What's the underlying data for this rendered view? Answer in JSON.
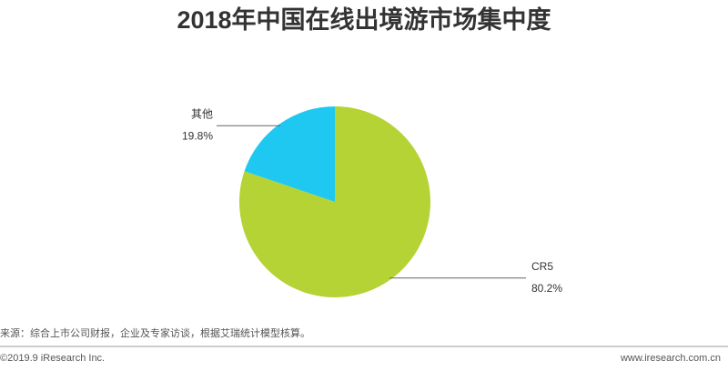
{
  "chart_data": {
    "type": "pie",
    "title": "2018年中国在线出境游市场集中度",
    "categories": [
      "CR5",
      "其他"
    ],
    "values": [
      80.2,
      19.8
    ],
    "value_labels": [
      "80.2%",
      "19.8%"
    ],
    "colors": [
      "#b5d334",
      "#1fc8f0"
    ],
    "source": "来源：综合上市公司财报，企业及专家访谈，根据艾瑞统计模型核算。"
  },
  "footer": {
    "copyright": "©2019.9 iResearch Inc.",
    "website": "www.iresearch.com.cn"
  }
}
